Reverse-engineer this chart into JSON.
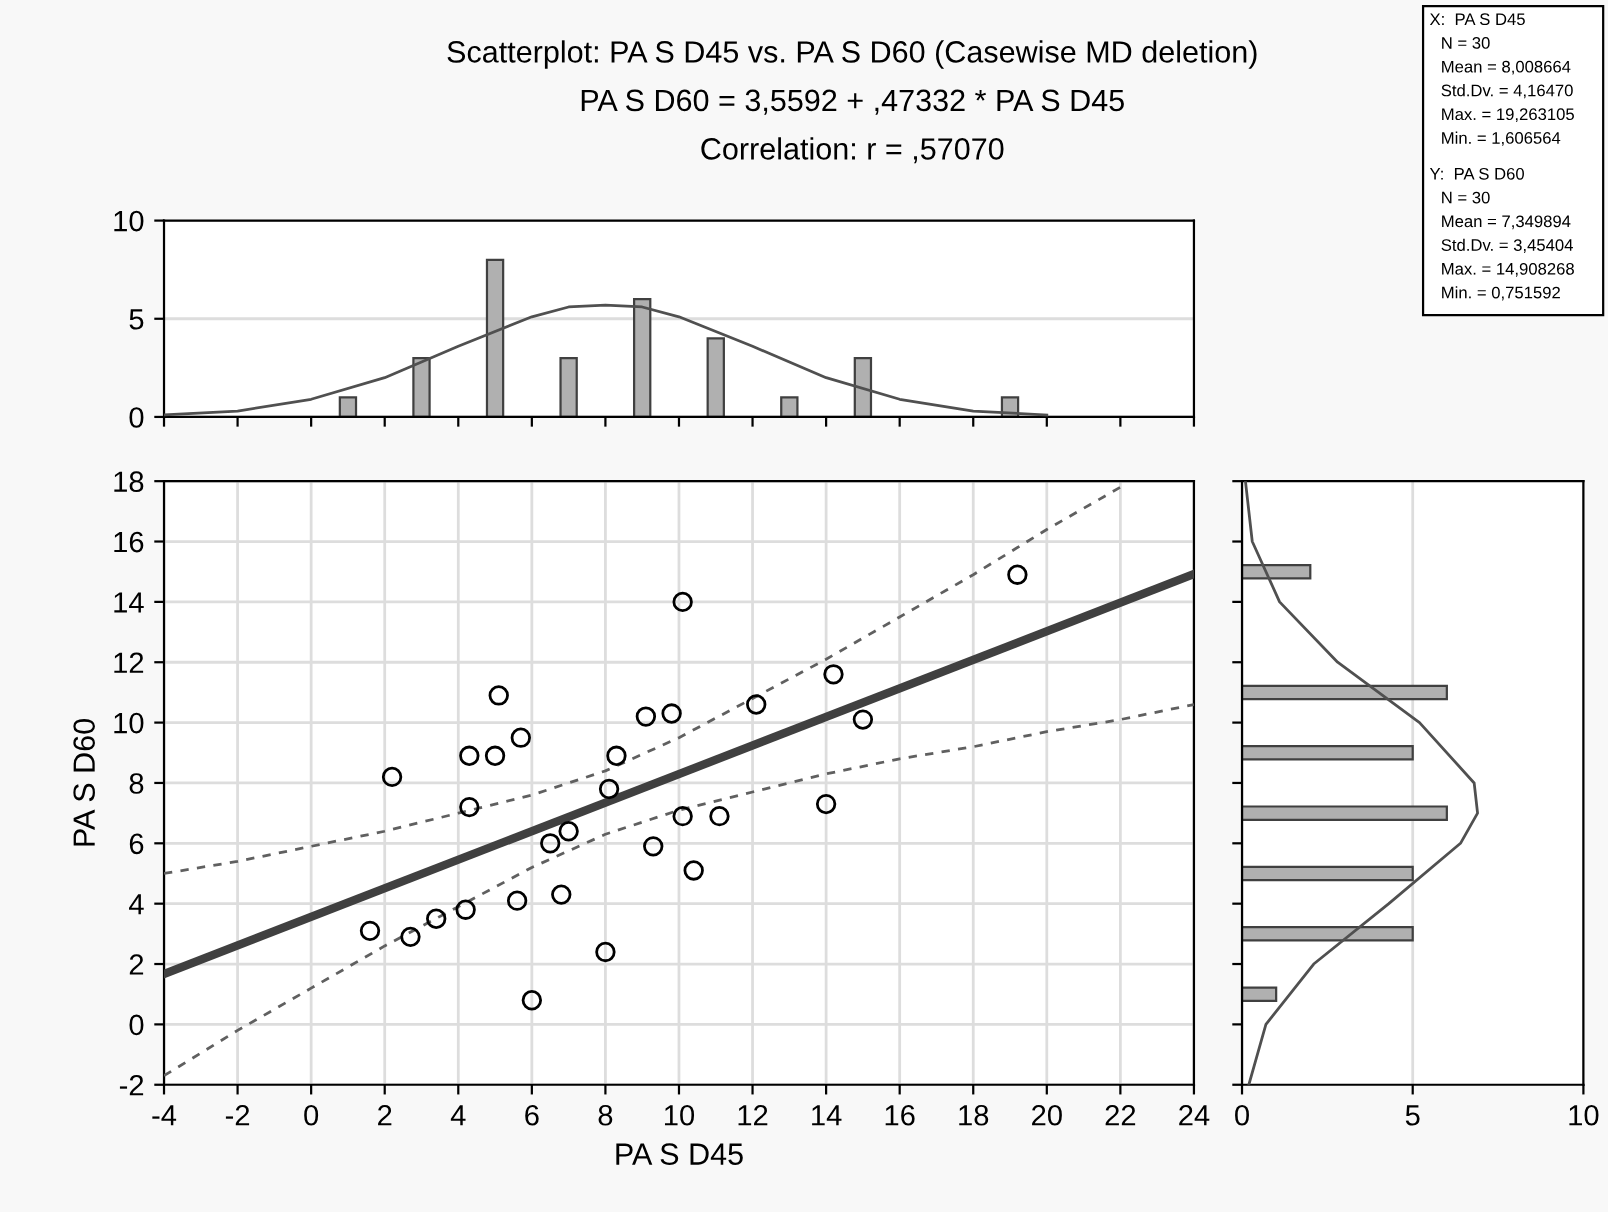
{
  "chart_data": [
    {
      "type": "histogram",
      "title": "Scatterplot: PA S D45 vs. PA S D60 (Casewise MD deletion)",
      "subtitle": "PA S D60 = 3,5592 + ,47332 * PA S D45",
      "annotations": [
        "Correlation: r = ,57070",
        "X:  PA S D45",
        "N = 30",
        "Mean = 8,008664",
        "Std.Dv. = 4,16470",
        "Max. = 19,263105",
        "Min. = 1,606564",
        "Y:  PA S D60",
        "N = 30",
        "Mean = 7,349894",
        "Std.Dv. = 3,45404",
        "Max. = 14,908268",
        "Min. = 0,751592"
      ],
      "bins": [
        0,
        2,
        4,
        6,
        8,
        10,
        12,
        14,
        16,
        18,
        20
      ],
      "values": [
        1,
        3,
        8,
        3,
        6,
        4,
        1,
        3,
        0,
        1
      ],
      "color": "#b0b0b0",
      "series": [
        {
          "type": "line",
          "color": "#505050",
          "x": [
            -4,
            -2,
            0,
            2,
            4,
            6,
            7,
            8,
            9,
            10,
            12,
            14,
            16,
            18,
            20
          ],
          "values": [
            0.1,
            0.3,
            0.9,
            2.0,
            3.6,
            5.1,
            5.6,
            5.7,
            5.6,
            5.1,
            3.6,
            2.0,
            0.9,
            0.3,
            0.1
          ]
        }
      ],
      "xlim": [
        -4,
        24
      ],
      "xticks": [
        -4,
        -2,
        0,
        2,
        4,
        6,
        8,
        10,
        12,
        14,
        16,
        18,
        20,
        22,
        24
      ],
      "ylim": [
        0,
        10
      ],
      "yticks": [
        0,
        5,
        10
      ],
      "grid": "y",
      "tick_labels": "y"
    },
    {
      "type": "scatter",
      "xlabel": "PA S D45",
      "ylabel": "PA S D60",
      "grid": true,
      "series": [
        {
          "type": "scatter",
          "color": "#000000",
          "marker": "circle",
          "x": [
            1.6,
            2.2,
            2.7,
            3.4,
            4.2,
            4.3,
            4.3,
            5.0,
            5.1,
            5.6,
            5.7,
            6.0,
            6.5,
            6.8,
            7.0,
            8.0,
            8.1,
            8.3,
            9.1,
            9.3,
            9.8,
            10.1,
            10.1,
            10.4,
            11.1,
            12.1,
            14.2,
            14.0,
            15.0,
            19.2
          ],
          "values": [
            3.1,
            8.2,
            2.9,
            3.5,
            3.8,
            8.9,
            7.2,
            8.9,
            10.9,
            4.1,
            9.5,
            0.8,
            6.0,
            4.3,
            6.4,
            2.4,
            7.8,
            8.9,
            10.2,
            5.9,
            10.3,
            14.0,
            6.9,
            5.1,
            6.9,
            10.6,
            11.6,
            7.3,
            10.1,
            14.9
          ]
        },
        {
          "type": "line",
          "color": "#404040",
          "line_style": "solid",
          "x": [
            -4,
            24
          ],
          "values": [
            1.67,
            14.92
          ]
        },
        {
          "type": "line",
          "color": "#606060",
          "line_style": "dashed",
          "x": [
            -4,
            -2,
            0,
            2,
            4,
            6,
            8,
            10,
            12,
            14,
            16,
            18,
            20,
            22
          ],
          "values": [
            5.0,
            5.4,
            5.9,
            6.4,
            7.0,
            7.6,
            8.4,
            9.5,
            10.8,
            12.1,
            13.5,
            14.9,
            16.4,
            17.8
          ]
        },
        {
          "type": "line",
          "color": "#606060",
          "line_style": "dashed",
          "x": [
            -4,
            -2,
            0,
            2,
            4,
            6,
            8,
            10,
            12,
            14,
            16,
            18,
            20,
            22,
            24
          ],
          "values": [
            -1.7,
            -0.2,
            1.2,
            2.6,
            3.9,
            5.2,
            6.3,
            7.1,
            7.7,
            8.3,
            8.8,
            9.2,
            9.7,
            10.1,
            10.6
          ]
        }
      ],
      "xlim": [
        -4,
        24
      ],
      "xticks": [
        -4,
        -2,
        0,
        2,
        4,
        6,
        8,
        10,
        12,
        14,
        16,
        18,
        20,
        22,
        24
      ],
      "ylim": [
        -2,
        18
      ],
      "yticks": [
        -2,
        0,
        2,
        4,
        6,
        8,
        10,
        12,
        14,
        16,
        18
      ]
    },
    {
      "type": "histogram",
      "orientation": "horizontal",
      "bins": [
        0,
        2,
        4,
        6,
        8,
        10,
        12,
        14,
        16
      ],
      "values": [
        1,
        5,
        5,
        6,
        5,
        6,
        0,
        2
      ],
      "color": "#b0b0b0",
      "series": [
        {
          "type": "line",
          "color": "#505050",
          "x": [
            -2,
            0,
            2,
            4,
            6,
            7,
            8,
            10,
            12,
            14,
            16,
            18
          ],
          "values": [
            0.2,
            0.7,
            2.1,
            4.3,
            6.4,
            6.9,
            6.8,
            5.2,
            2.8,
            1.1,
            0.3,
            0.1
          ]
        }
      ],
      "xlim": [
        0,
        10
      ],
      "xticks": [
        0,
        5,
        10
      ],
      "ylim": [
        -2,
        18
      ],
      "yticks": [
        -2,
        0,
        2,
        4,
        6,
        8,
        10,
        12,
        14,
        16,
        18
      ],
      "grid": "x",
      "tick_labels": "x"
    }
  ]
}
